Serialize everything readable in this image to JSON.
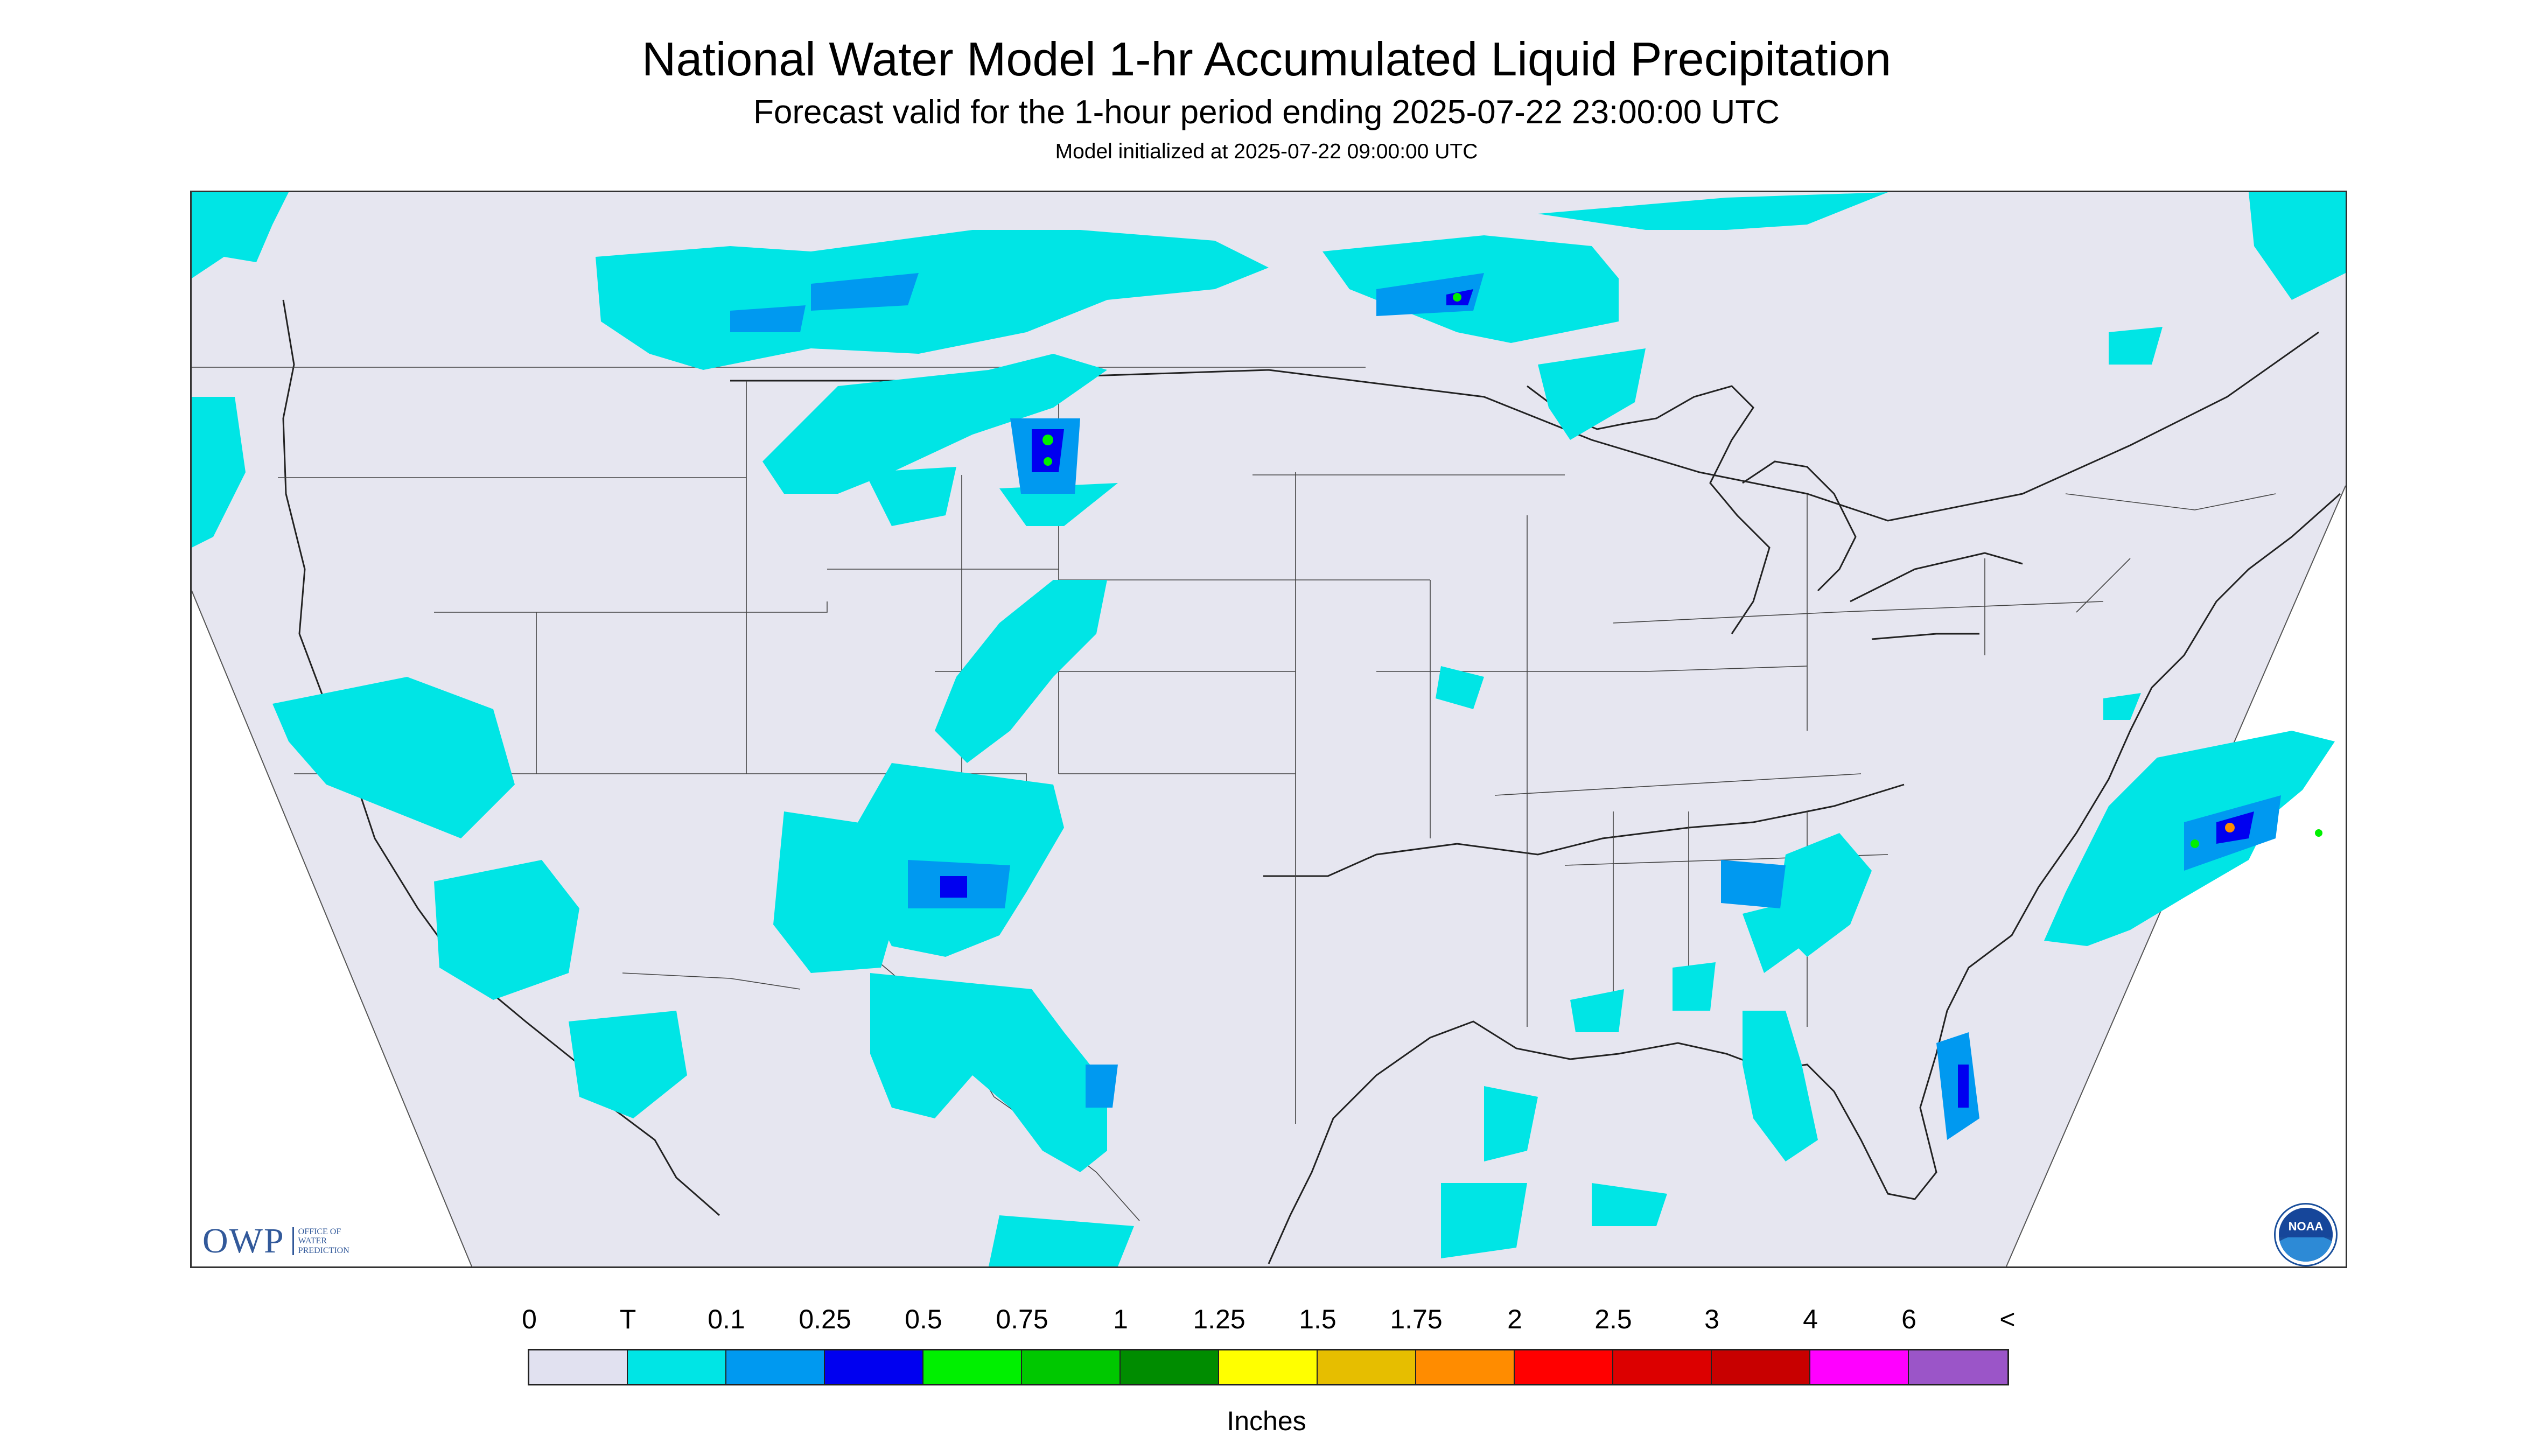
{
  "title": "National Water Model 1-hr Accumulated Liquid Precipitation",
  "subtitle": "Forecast valid for the 1-hour period ending 2025-07-22 23:00:00 UTC",
  "init": "Model initialized at 2025-07-22 09:00:00 UTC",
  "logos": {
    "owp_mark": "OWP",
    "owp_text": "OFFICE OF WATER PREDICTION",
    "noaa_text": "NOAA"
  },
  "legend": {
    "labels": [
      "0",
      "T",
      "0.1",
      "0.25",
      "0.5",
      "0.75",
      "1",
      "1.25",
      "1.5",
      "1.75",
      "2",
      "2.5",
      "3",
      "4",
      "6",
      "<"
    ],
    "colors": [
      "#e1e1f0",
      "#00e5e5",
      "#0099f0",
      "#0000f0",
      "#00f000",
      "#00c800",
      "#008c00",
      "#ffff00",
      "#e6be00",
      "#ff8c00",
      "#ff0000",
      "#dc0000",
      "#c80000",
      "#ff00ff",
      "#9b55c8"
    ],
    "units": "Inches"
  },
  "colors": {
    "map_bg": "#e6e6f0",
    "trace": "#00e5e5",
    "light_blue": "#0099f0",
    "dark_blue": "#0000f0",
    "green": "#00f000",
    "orange": "#ff8c00"
  }
}
